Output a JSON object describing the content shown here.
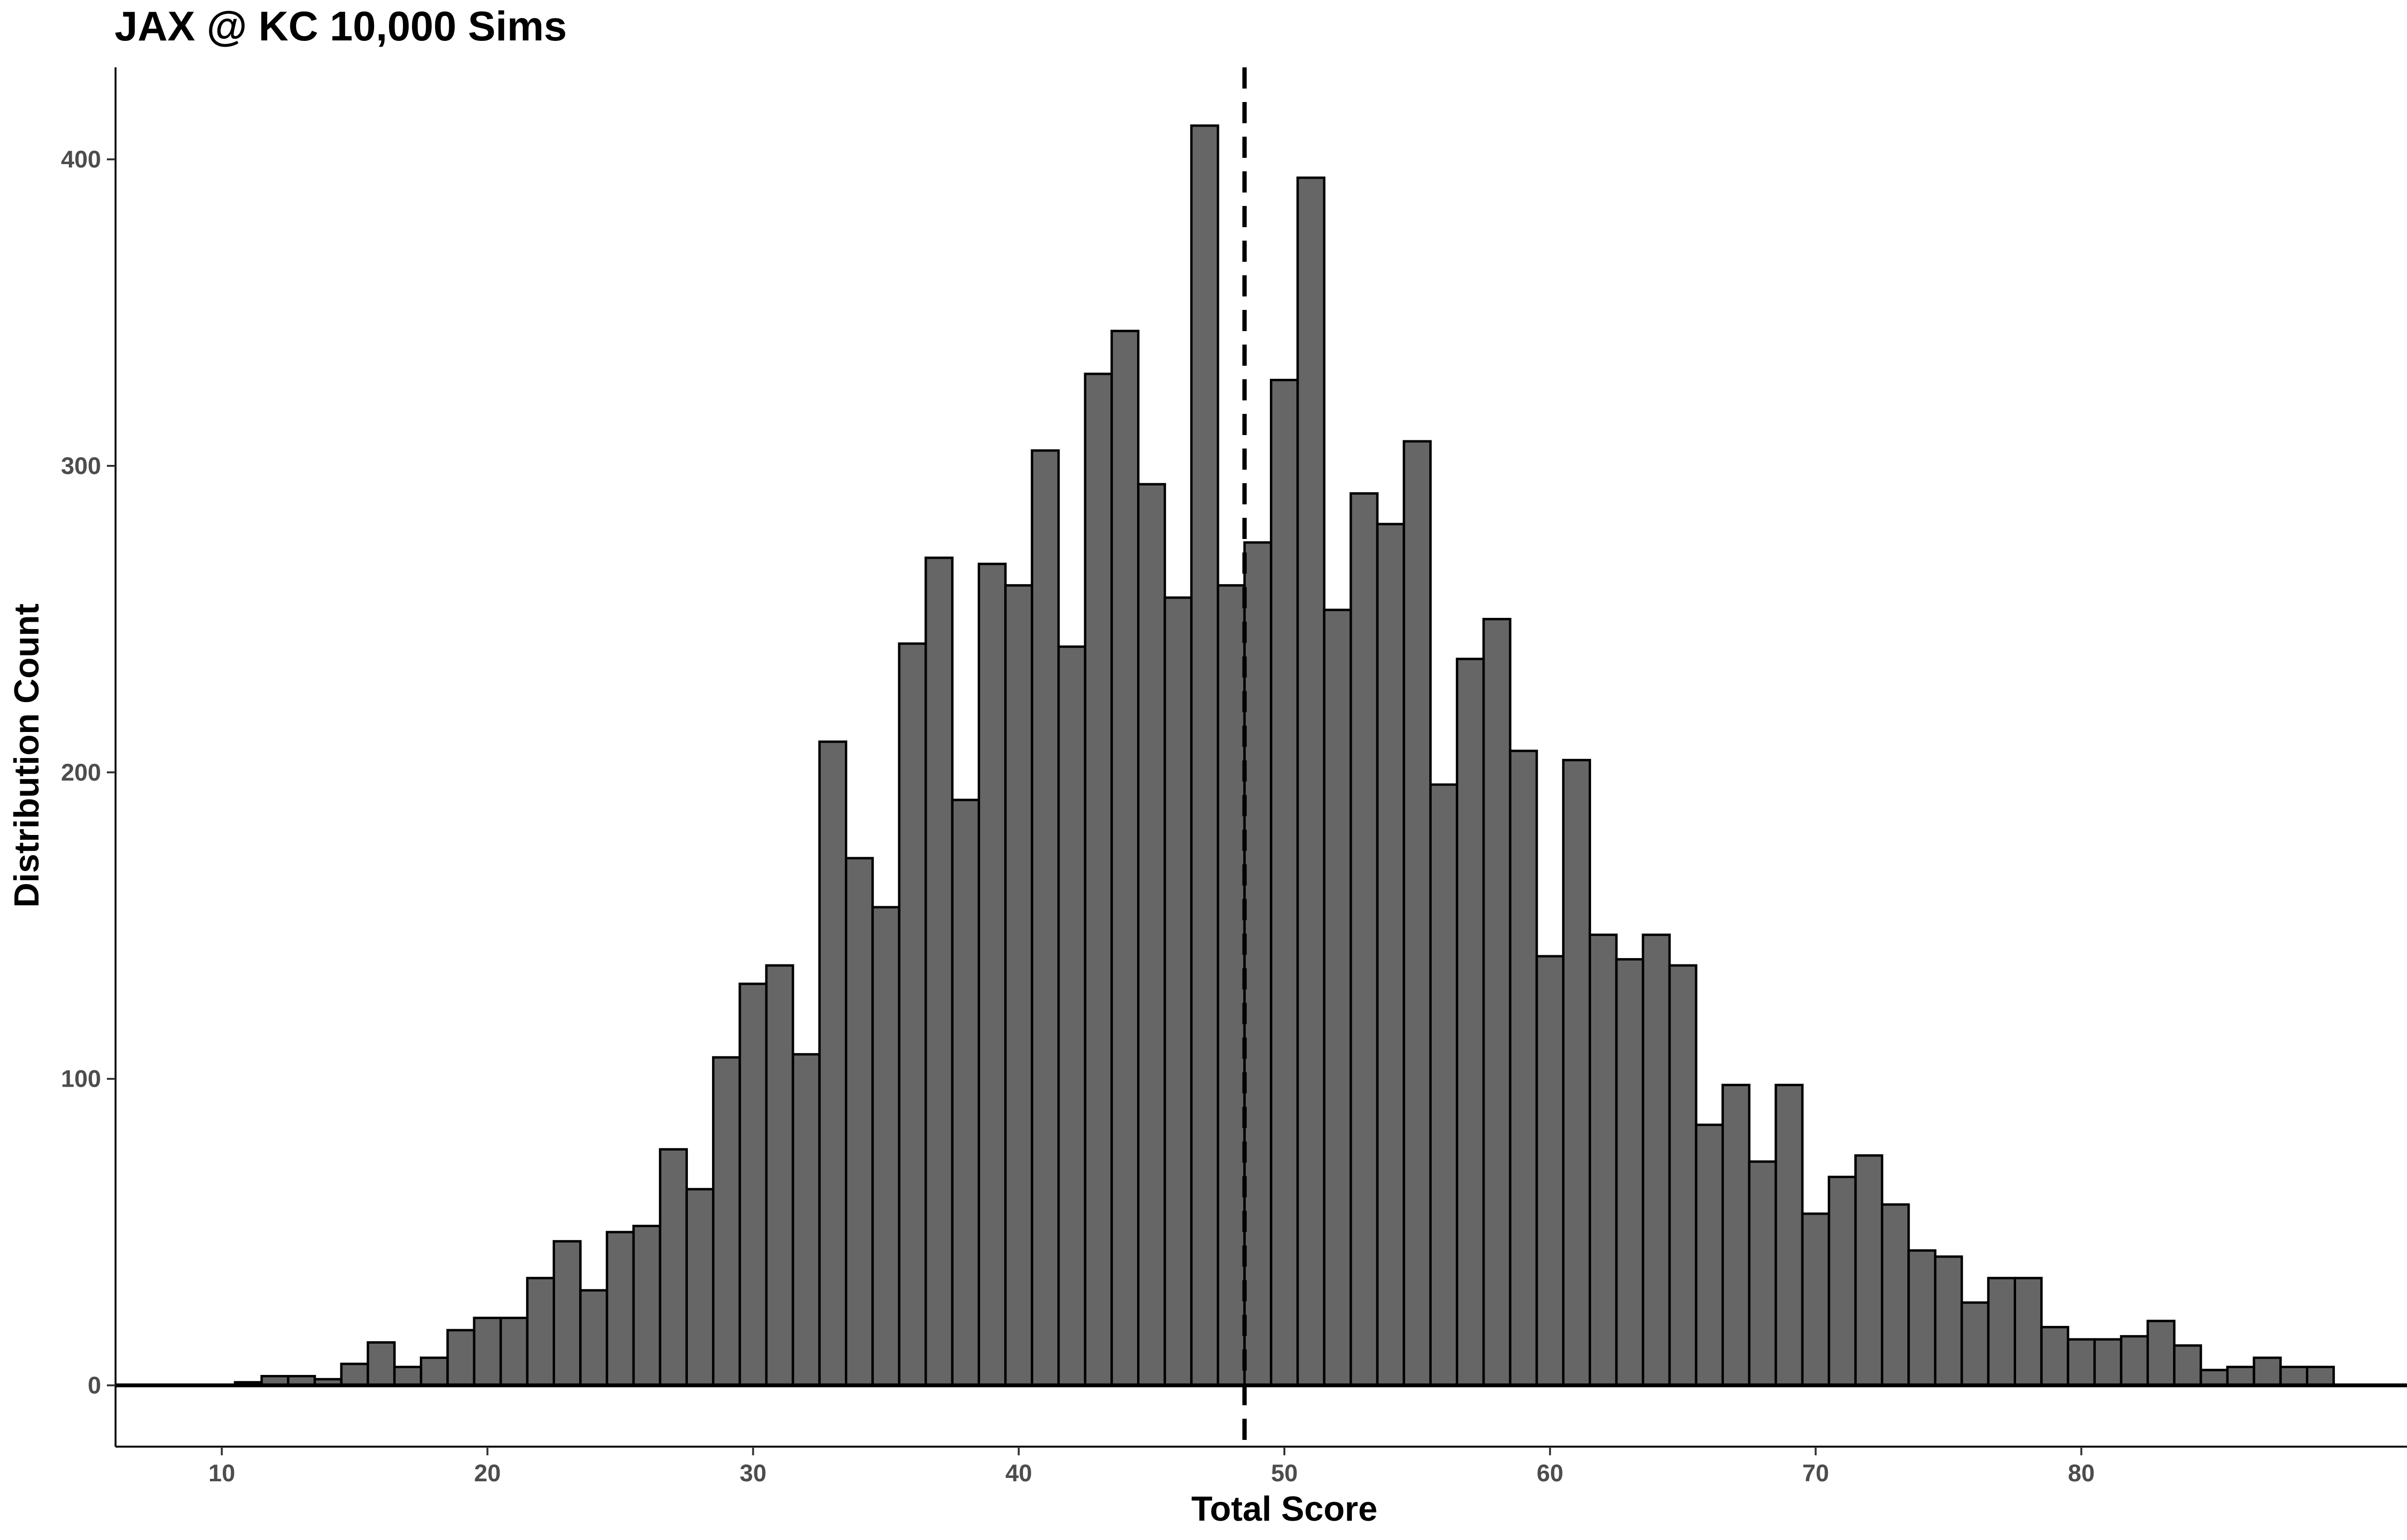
{
  "chart_data": {
    "type": "bar",
    "title": "JAX @ KC 10,000 Sims",
    "xlabel": "Total Score",
    "ylabel": "Distribution Count",
    "bin_width": 1,
    "x": [
      11,
      12,
      13,
      14,
      15,
      16,
      17,
      18,
      19,
      20,
      21,
      22,
      23,
      24,
      25,
      26,
      27,
      28,
      29,
      30,
      31,
      32,
      33,
      34,
      35,
      36,
      37,
      38,
      39,
      40,
      41,
      42,
      43,
      44,
      45,
      46,
      47,
      48,
      49,
      50,
      51,
      52,
      53,
      54,
      55,
      56,
      57,
      58,
      59,
      60,
      61,
      62,
      63,
      64,
      65,
      66,
      67,
      68,
      69,
      70,
      71,
      72,
      73,
      74,
      75,
      76,
      77,
      78,
      79,
      80,
      81,
      82,
      83,
      84,
      85,
      86,
      87,
      88,
      89
    ],
    "values": [
      1,
      3,
      3,
      2,
      7,
      14,
      6,
      9,
      18,
      22,
      22,
      35,
      47,
      31,
      50,
      52,
      77,
      64,
      107,
      131,
      137,
      108,
      210,
      172,
      156,
      242,
      270,
      191,
      268,
      261,
      305,
      241,
      330,
      344,
      294,
      257,
      411,
      261,
      275,
      328,
      394,
      253,
      291,
      281,
      308,
      196,
      237,
      250,
      207,
      140,
      204,
      147,
      139,
      147,
      137,
      85,
      98,
      73,
      98,
      56,
      68,
      75,
      59,
      44,
      42,
      27,
      35,
      35,
      19,
      15,
      15,
      16,
      21,
      13,
      5,
      6,
      9,
      6,
      6
    ],
    "xlim": [
      6,
      94
    ],
    "ylim": [
      -20,
      430
    ],
    "xticks": [
      10,
      20,
      30,
      40,
      50,
      60,
      70,
      80
    ],
    "yticks": [
      0,
      100,
      200,
      300,
      400
    ],
    "reference_line": 48.5,
    "grid": false,
    "bar_fill": "#666666",
    "bar_stroke": "#000000"
  }
}
